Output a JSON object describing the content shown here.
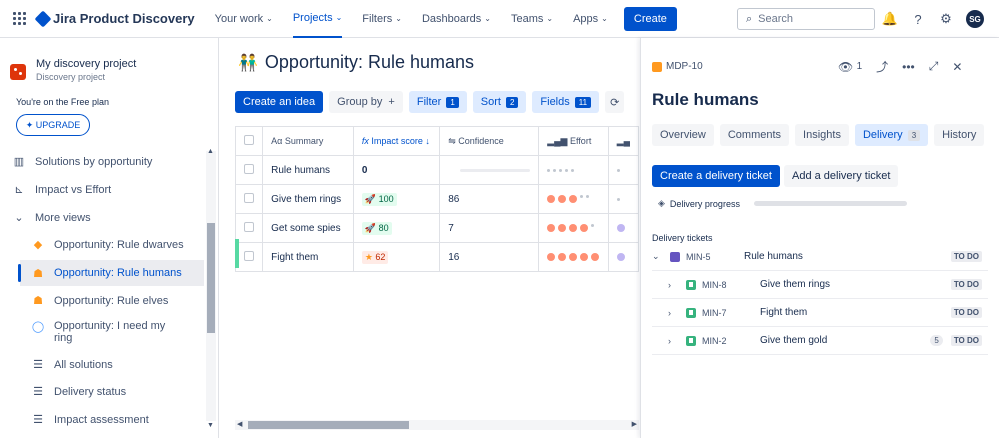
{
  "topnav": {
    "app_name": "Jira Product Discovery",
    "items": [
      {
        "label": "Your work",
        "active": false
      },
      {
        "label": "Projects",
        "active": true
      },
      {
        "label": "Filters",
        "active": false
      },
      {
        "label": "Dashboards",
        "active": false
      },
      {
        "label": "Teams",
        "active": false
      },
      {
        "label": "Apps",
        "active": false
      }
    ],
    "create_label": "Create",
    "search_placeholder": "Search",
    "avatar_initials": "SG"
  },
  "sidebar": {
    "project_name": "My discovery project",
    "project_type": "Discovery project",
    "plan_text": "You're on the Free plan",
    "upgrade_label": "UPGRADE",
    "items": [
      {
        "label": "Solutions by opportunity",
        "icon": "table-icon"
      },
      {
        "label": "Impact vs Effort",
        "icon": "matrix-icon"
      },
      {
        "label": "More views",
        "icon": "chevron-down-icon"
      },
      {
        "label": "Opportunity: Rule dwarves",
        "icon": "warning-icon"
      },
      {
        "label": "Opportunity: Rule humans",
        "icon": "people-icon",
        "selected": true
      },
      {
        "label": "Opportunity: Rule elves",
        "icon": "elf-icon"
      },
      {
        "label": "Opportunity: I need my",
        "label2": "ring",
        "icon": "ring-icon"
      },
      {
        "label": "All solutions",
        "icon": "list-icon"
      },
      {
        "label": "Delivery status",
        "icon": "list-icon"
      },
      {
        "label": "Impact assessment",
        "icon": "list-icon"
      }
    ]
  },
  "main": {
    "view_title": "Opportunity: Rule humans",
    "toolbar": {
      "create_idea": "Create an idea",
      "group_by": "Group by",
      "filter": "Filter",
      "filter_count": "1",
      "sort": "Sort",
      "sort_count": "2",
      "fields": "Fields",
      "fields_count": "11"
    },
    "columns": [
      "Summary",
      "Impact score",
      "Confidence",
      "Effort"
    ],
    "rows": [
      {
        "summary": "Rule humans",
        "impact": "0",
        "confidence": "",
        "effort": 0
      },
      {
        "summary": "Give them rings",
        "impact": "100",
        "impact_icon": "rocket-icon",
        "confidence": "86",
        "effort": 3
      },
      {
        "summary": "Get some spies",
        "impact": "80",
        "impact_icon": "rocket-icon",
        "confidence": "7",
        "effort": 4
      },
      {
        "summary": "Fight them",
        "impact": "62",
        "impact_icon": "star-icon",
        "confidence": "16",
        "effort": 5
      }
    ]
  },
  "panel": {
    "key": "MDP-10",
    "watchers": "1",
    "title": "Rule humans",
    "tabs": [
      {
        "label": "Overview"
      },
      {
        "label": "Comments"
      },
      {
        "label": "Insights"
      },
      {
        "label": "Delivery",
        "count": "3",
        "selected": true
      },
      {
        "label": "History"
      }
    ],
    "create_ticket": "Create a delivery ticket",
    "add_ticket": "Add a delivery ticket",
    "progress_label": "Delivery progress",
    "delivery_tickets_label": "Delivery tickets",
    "tickets": [
      {
        "key": "MIN-5",
        "summary": "Rule humans",
        "status": "TO DO",
        "type": "epic",
        "points": ""
      },
      {
        "key": "MIN-8",
        "summary": "Give them rings",
        "status": "TO DO",
        "type": "story",
        "points": ""
      },
      {
        "key": "MIN-7",
        "summary": "Fight them",
        "status": "TO DO",
        "type": "story",
        "points": ""
      },
      {
        "key": "MIN-2",
        "summary": "Give them gold",
        "status": "TO DO",
        "type": "story",
        "points": "5"
      }
    ]
  },
  "colors": {
    "accent": "#0052cc",
    "success": "#57d9a3"
  }
}
